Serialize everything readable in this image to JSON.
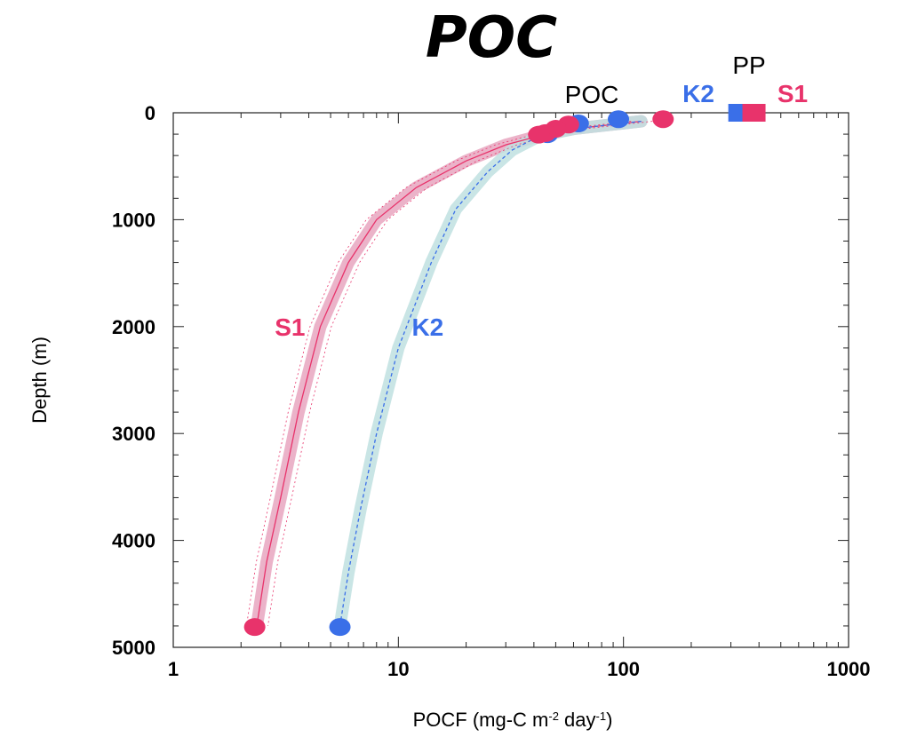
{
  "chart_data": {
    "type": "line",
    "title": "POC",
    "xlabel_main": "POCF (mg-C m",
    "xlabel_sup1": "-2",
    "xlabel_mid": " day",
    "xlabel_sup2": "-1",
    "xlabel_end": ")",
    "ylabel": "Depth (m)",
    "x_scale": "log",
    "xlim": [
      1,
      1000
    ],
    "ylim": [
      5000,
      0
    ],
    "x_ticks": [
      {
        "value": 1,
        "label": "1"
      },
      {
        "value": 10,
        "label": "10"
      },
      {
        "value": 100,
        "label": "100"
      },
      {
        "value": 1000,
        "label": "1000"
      }
    ],
    "y_ticks": [
      {
        "value": 0,
        "label": "0"
      },
      {
        "value": 1000,
        "label": "1000"
      },
      {
        "value": 2000,
        "label": "2000"
      },
      {
        "value": 3000,
        "label": "3000"
      },
      {
        "value": 4000,
        "label": "4000"
      },
      {
        "value": 5000,
        "label": "5000"
      }
    ],
    "annotations": {
      "poc": "POC",
      "pp": "PP",
      "k2_top": "K2",
      "s1_top": "S1"
    },
    "colors": {
      "s1": "#e8336b",
      "k2": "#3a6fe8",
      "s1_band": "#e7a6c0",
      "k2_band": "#bfe0e0"
    },
    "series": [
      {
        "name": "S1",
        "color": "#e8336b",
        "band_color": "#e7a6c0",
        "curve": [
          [
            120,
            80
          ],
          [
            60,
            150
          ],
          [
            45,
            200
          ],
          [
            30,
            300
          ],
          [
            20,
            450
          ],
          [
            12,
            700
          ],
          [
            8,
            1000
          ],
          [
            6,
            1400
          ],
          [
            4.5,
            2000
          ],
          [
            3.6,
            2800
          ],
          [
            3.0,
            3600
          ],
          [
            2.6,
            4200
          ],
          [
            2.35,
            4800
          ]
        ],
        "points": [
          [
            150,
            60
          ],
          [
            57,
            110
          ],
          [
            50,
            150
          ],
          [
            45,
            190
          ],
          [
            42,
            205
          ],
          [
            2.3,
            4810
          ]
        ],
        "pp": 380
      },
      {
        "name": "K2",
        "color": "#3a6fe8",
        "band_color": "#bfe0e0",
        "curve": [
          [
            120,
            80
          ],
          [
            60,
            150
          ],
          [
            42,
            220
          ],
          [
            32,
            350
          ],
          [
            25,
            550
          ],
          [
            18,
            900
          ],
          [
            14,
            1400
          ],
          [
            10,
            2200
          ],
          [
            8,
            3000
          ],
          [
            6.8,
            3700
          ],
          [
            6.0,
            4300
          ],
          [
            5.5,
            4800
          ]
        ],
        "points": [
          [
            95,
            60
          ],
          [
            63,
            100
          ],
          [
            46,
            200
          ],
          [
            5.5,
            4810
          ]
        ],
        "pp": 320
      }
    ]
  }
}
